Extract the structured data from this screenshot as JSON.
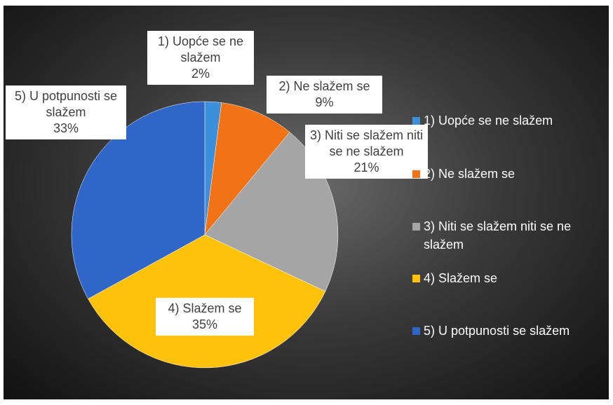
{
  "chart_data": {
    "type": "pie",
    "categories": [
      "1) Uopće se ne slažem",
      "2) Ne slažem se",
      "3) Niti se slažem niti se ne slažem",
      "4) Slažem se",
      "5) U potpunosti se slažem"
    ],
    "values": [
      2,
      9,
      21,
      35,
      33
    ],
    "value_labels": [
      "2%",
      "9%",
      "21%",
      "35%",
      "33%"
    ],
    "colors": [
      "#3d8fdc",
      "#f27216",
      "#a5a5a5",
      "#ffc20a",
      "#2f66c8"
    ],
    "legend": "right"
  }
}
